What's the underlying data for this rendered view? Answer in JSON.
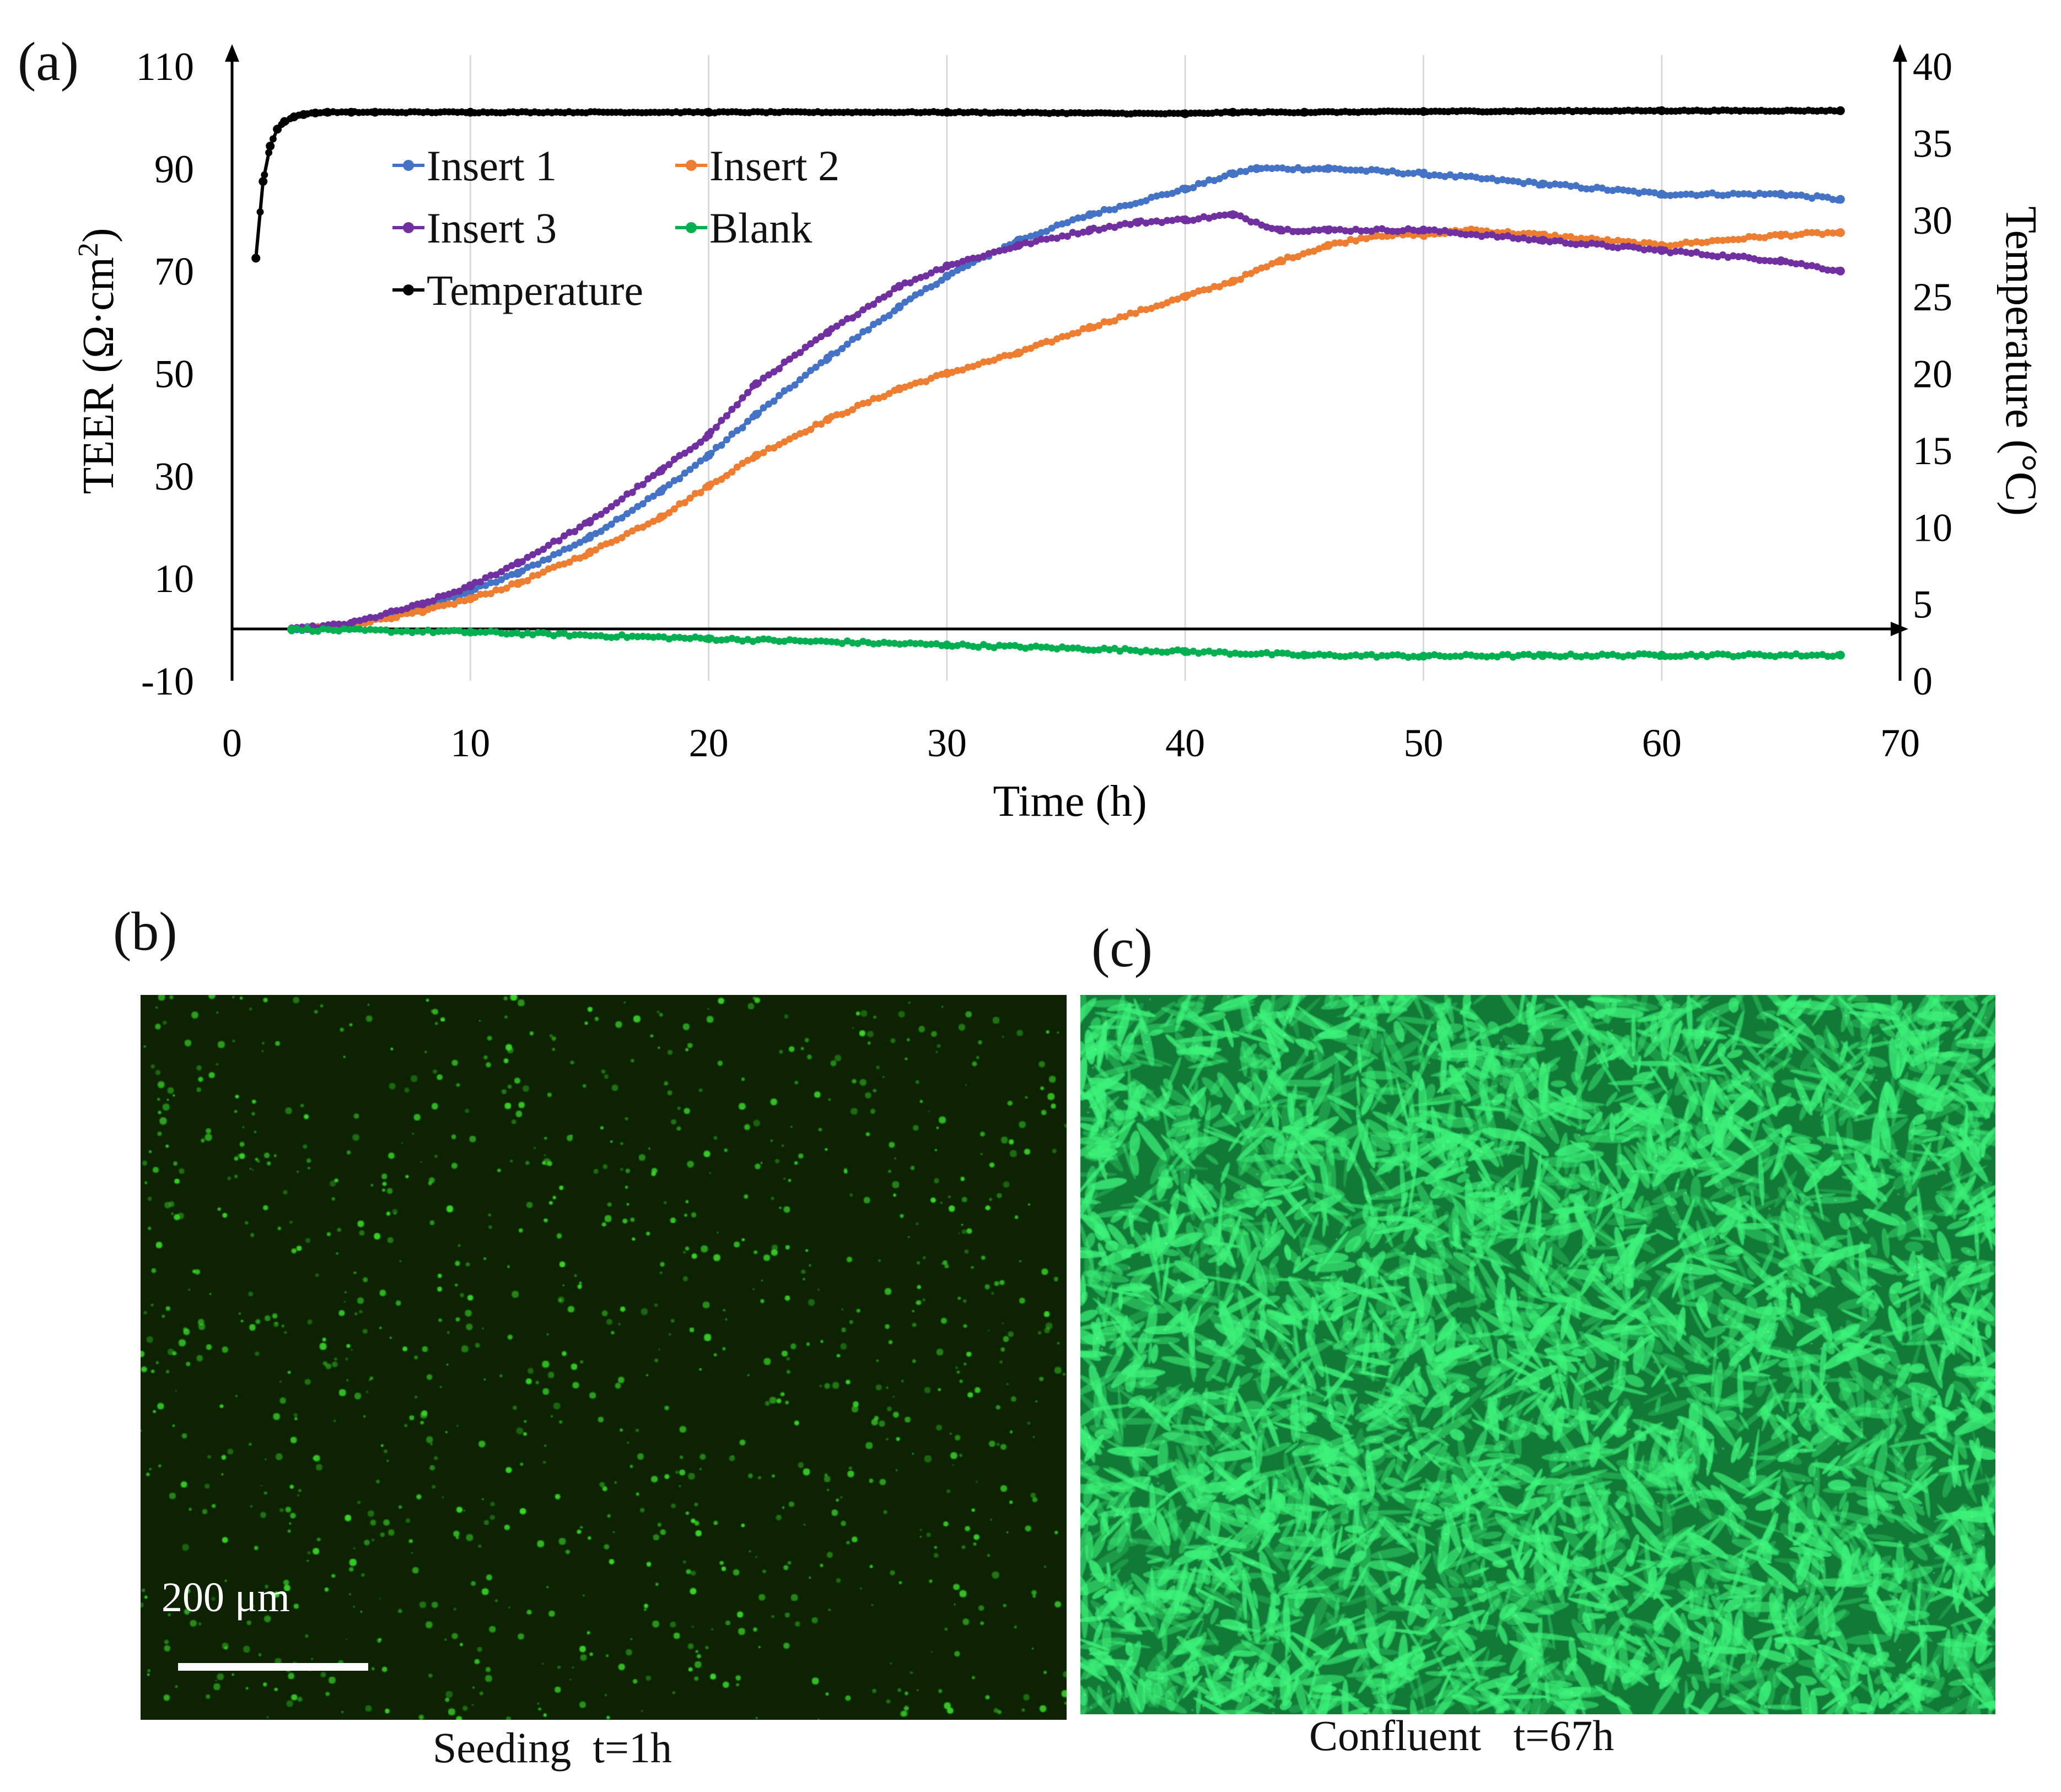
{
  "panels": {
    "a": "(a)",
    "b": "(b)",
    "c": "(c)"
  },
  "chart_data": {
    "type": "line",
    "xlabel": "Time (h)",
    "ylabel": "TEER (Ω·cm²)",
    "ylabel_parts": {
      "main": "TEER (Ω·cm",
      "sup": "2",
      "end": ")"
    },
    "y2label": "Temperature (°C)",
    "xlim": [
      0,
      70
    ],
    "ylim": [
      -10,
      110
    ],
    "y2lim": [
      0,
      40
    ],
    "xticks": [
      0,
      10,
      20,
      30,
      40,
      50,
      60,
      70
    ],
    "yticks": [
      -10,
      10,
      30,
      50,
      70,
      90,
      110
    ],
    "y2ticks": [
      0,
      5,
      10,
      15,
      20,
      25,
      30,
      35,
      40
    ],
    "grid": "vertical",
    "legend_position": "upper-left",
    "series": [
      {
        "name": "Insert 1",
        "axis": "left",
        "color": "#4472c4",
        "x": [
          2.5,
          5,
          8,
          10,
          12,
          15,
          18,
          20,
          22,
          25,
          28,
          30,
          33,
          36,
          40,
          42,
          43,
          46,
          50,
          55,
          60,
          65,
          67.5
        ],
        "y": [
          0,
          1,
          4.5,
          7.5,
          11,
          18,
          27,
          34,
          42,
          53,
          63,
          69,
          76,
          81,
          86,
          89,
          90,
          90,
          89,
          87,
          85,
          85,
          84
        ]
      },
      {
        "name": "Insert 2",
        "axis": "left",
        "color": "#ed7d31",
        "x": [
          2.5,
          5,
          8,
          10,
          12,
          15,
          18,
          20,
          22,
          25,
          28,
          30,
          33,
          36,
          40,
          42,
          44,
          46,
          48,
          50,
          52,
          55,
          60,
          65,
          67.5
        ],
        "y": [
          0,
          1,
          3.5,
          6,
          9,
          15,
          22,
          28,
          34,
          41,
          47,
          50,
          54,
          59,
          65,
          68,
          72,
          75,
          77,
          77,
          78,
          77,
          75,
          77,
          77.5
        ]
      },
      {
        "name": "Insert 3",
        "axis": "left",
        "color": "#7030a0",
        "x": [
          2.5,
          5,
          8,
          10,
          12,
          15,
          18,
          20,
          22,
          25,
          28,
          30,
          33,
          36,
          38,
          40,
          42,
          44,
          46,
          50,
          55,
          60,
          65,
          67.5
        ],
        "y": [
          0,
          1.2,
          5,
          8.5,
          13,
          21,
          31,
          38,
          48,
          58,
          67,
          71,
          75,
          78,
          79.5,
          80,
          81,
          78,
          78,
          78,
          76,
          74,
          72,
          70
        ]
      },
      {
        "name": "Blank",
        "axis": "left",
        "color": "#00b050",
        "x": [
          2.5,
          10,
          20,
          30,
          40,
          45,
          50,
          55,
          60,
          67.5
        ],
        "y": [
          0,
          -0.5,
          -1.8,
          -3,
          -4.3,
          -5,
          -5.2,
          -5.1,
          -5,
          -5
        ]
      },
      {
        "name": "Temperature",
        "axis": "right",
        "color": "#000000",
        "x": [
          1,
          1.3,
          1.6,
          1.9,
          2.2,
          2.6,
          3,
          3.5,
          4,
          5,
          6,
          10,
          20,
          30,
          40,
          42,
          45,
          50,
          60,
          67.5
        ],
        "y": [
          27.5,
          32.5,
          34.8,
          35.9,
          36.4,
          36.7,
          36.85,
          36.95,
          37,
          37,
          37,
          37,
          37,
          37,
          36.9,
          37,
          37,
          37.05,
          37.1,
          37.1
        ]
      }
    ]
  },
  "images": {
    "b": {
      "caption": "Seeding  t=1h",
      "scale_label": "200 μm"
    },
    "c": {
      "caption": "Confluent   t=67h"
    }
  },
  "colors": {
    "micro_b_bg": "#0c2200",
    "micro_b_cell": "#3ad62a",
    "micro_c_bg": "#117a36",
    "micro_c_cell": "#3df27a"
  }
}
